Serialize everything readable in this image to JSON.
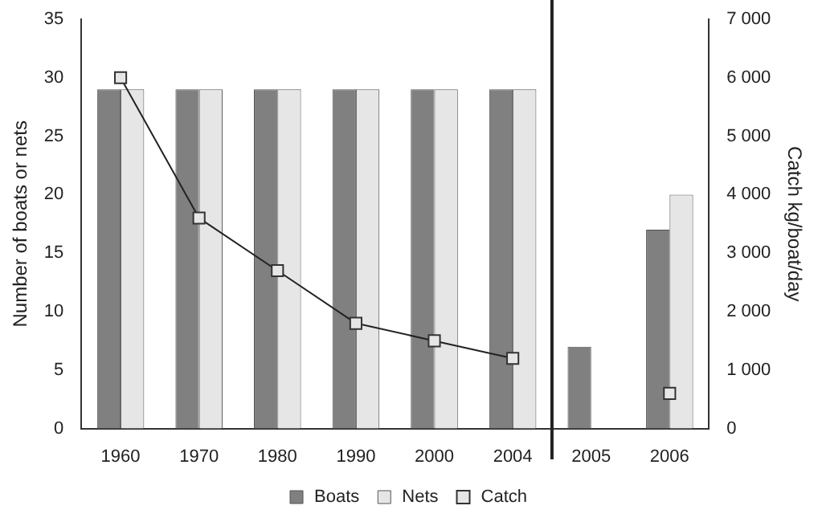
{
  "chart_data": {
    "type": "bar",
    "categories": [
      "1960",
      "1970",
      "1980",
      "1990",
      "2000",
      "2004",
      "2005",
      "2006"
    ],
    "series": [
      {
        "name": "Boats",
        "color": "#808080",
        "values": [
          29,
          29,
          29,
          29,
          29,
          29,
          7,
          17
        ]
      },
      {
        "name": "Nets",
        "color": "#e6e6e6",
        "values": [
          29,
          29,
          29,
          29,
          29,
          29,
          null,
          20
        ]
      },
      {
        "name": "Catch",
        "type": "line",
        "axis": "y2",
        "color": "#e6e6e6",
        "values": [
          6000,
          3600,
          2700,
          1800,
          1500,
          1200,
          null,
          600
        ]
      }
    ],
    "ylabel": "Number of boats or nets",
    "y2label": "Catch kg/boat/day",
    "ylim": [
      0,
      35
    ],
    "yticks": [
      0,
      5,
      10,
      15,
      20,
      25,
      30,
      35
    ],
    "y2lim": [
      0,
      7000
    ],
    "y2ticks": [
      {
        "value": 0,
        "label": "0"
      },
      {
        "value": 1000,
        "label": "1 000"
      },
      {
        "value": 2000,
        "label": "2 000"
      },
      {
        "value": 3000,
        "label": "3 000"
      },
      {
        "value": 4000,
        "label": "4 000"
      },
      {
        "value": 5000,
        "label": "5 000"
      },
      {
        "value": 6000,
        "label": "6 000"
      },
      {
        "value": 7000,
        "label": "7 000"
      }
    ],
    "legend": "bottom",
    "grid": false,
    "marker": "square",
    "line_style": "solid"
  }
}
